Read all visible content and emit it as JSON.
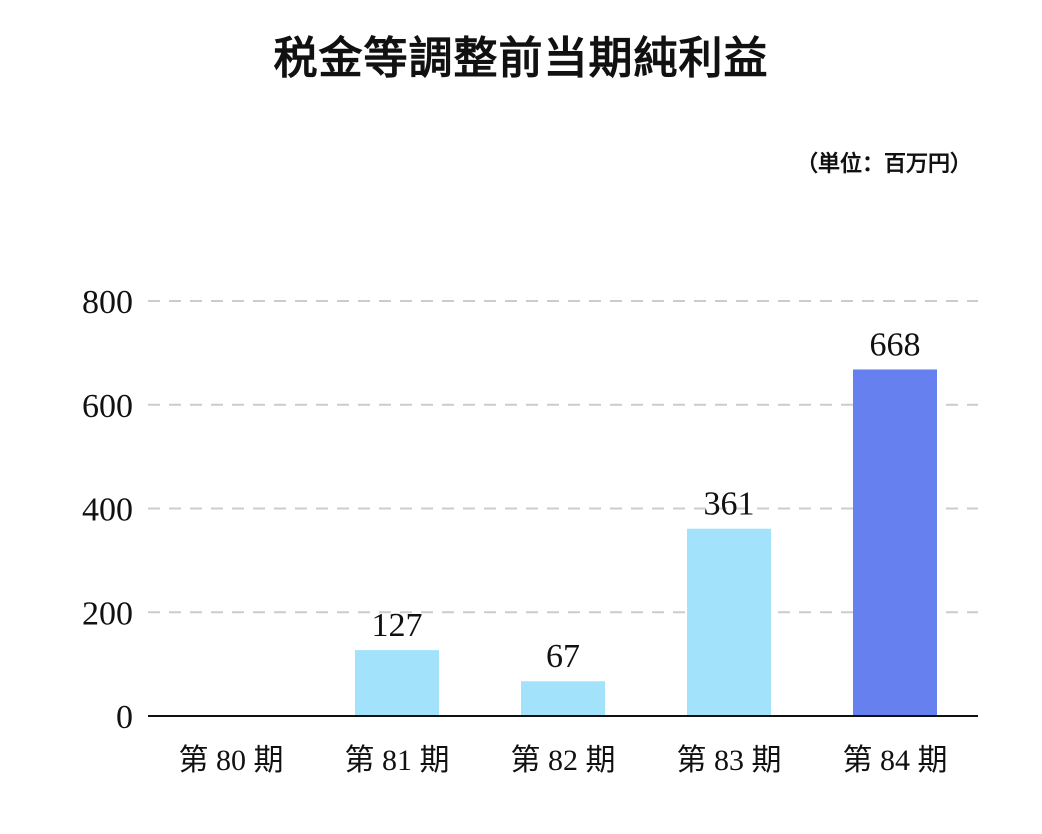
{
  "chart_data": {
    "type": "bar",
    "title": "税金等調整前当期純利益",
    "unit_label": "（単位：百万円）",
    "categories": [
      "第 80 期",
      "第 81 期",
      "第 82 期",
      "第 83 期",
      "第 84 期"
    ],
    "values": [
      null,
      127,
      67,
      361,
      668
    ],
    "value_labels": [
      "",
      "127",
      "67",
      "361",
      "668"
    ],
    "highlight_index": 4,
    "ylim": [
      0,
      800
    ],
    "yticks": [
      0,
      200,
      400,
      600,
      800
    ],
    "ytick_labels": [
      "0",
      "200",
      "400",
      "600",
      "800"
    ],
    "grid": true,
    "grid_style": "dashed",
    "colors": {
      "bar": "#a2e3fb",
      "highlight_bar": "#6680ef",
      "grid": "#cccccc",
      "axis": "#111111"
    }
  }
}
